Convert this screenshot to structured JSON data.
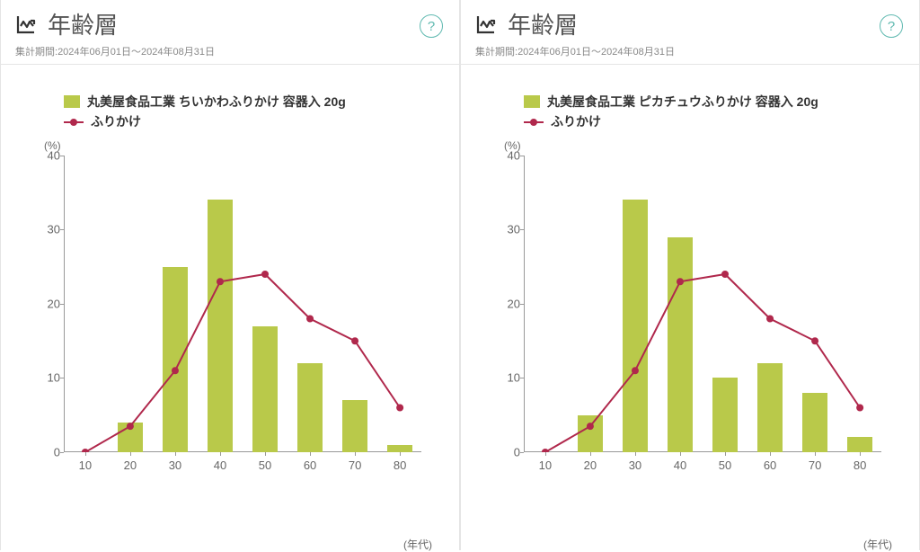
{
  "panels": [
    {
      "title": "年齢層",
      "period_prefix": "集計期間:",
      "period_value": "2024年06月01日～2024年08月31日",
      "help": "?",
      "chart": {
        "type": "bar+line",
        "y_unit": "(%)",
        "x_unit": "(年代)",
        "ylim": [
          0,
          40
        ],
        "ytick_step": 10,
        "categories": [
          10,
          20,
          30,
          40,
          50,
          60,
          70,
          80
        ],
        "bar_series": {
          "label": "丸美屋食品工業 ちいかわふりかけ 容器入 20g",
          "color": "#b9c94a",
          "values": [
            0,
            4,
            25,
            34,
            17,
            12,
            7,
            1
          ],
          "bar_width": 0.55
        },
        "line_series": {
          "label": "ふりかけ",
          "color": "#b0284c",
          "marker_radius": 4,
          "line_width": 2,
          "values": [
            0,
            3.5,
            11,
            23,
            24,
            18,
            15,
            6
          ]
        },
        "axis_color": "#999999",
        "text_color": "#666666",
        "legend_font_weight": 700,
        "legend_font_size": 14
      }
    },
    {
      "title": "年齢層",
      "period_prefix": "集計期間:",
      "period_value": "2024年06月01日～2024年08月31日",
      "help": "?",
      "chart": {
        "type": "bar+line",
        "y_unit": "(%)",
        "x_unit": "(年代)",
        "ylim": [
          0,
          40
        ],
        "ytick_step": 10,
        "categories": [
          10,
          20,
          30,
          40,
          50,
          60,
          70,
          80
        ],
        "bar_series": {
          "label": "丸美屋食品工業 ピカチュウふりかけ 容器入 20g",
          "color": "#b9c94a",
          "values": [
            0,
            5,
            34,
            29,
            10,
            12,
            8,
            2
          ],
          "bar_width": 0.55
        },
        "line_series": {
          "label": "ふりかけ",
          "color": "#b0284c",
          "marker_radius": 4,
          "line_width": 2,
          "values": [
            0,
            3.5,
            11,
            23,
            24,
            18,
            15,
            6
          ]
        },
        "axis_color": "#999999",
        "text_color": "#666666",
        "legend_font_weight": 700,
        "legend_font_size": 14
      }
    }
  ]
}
